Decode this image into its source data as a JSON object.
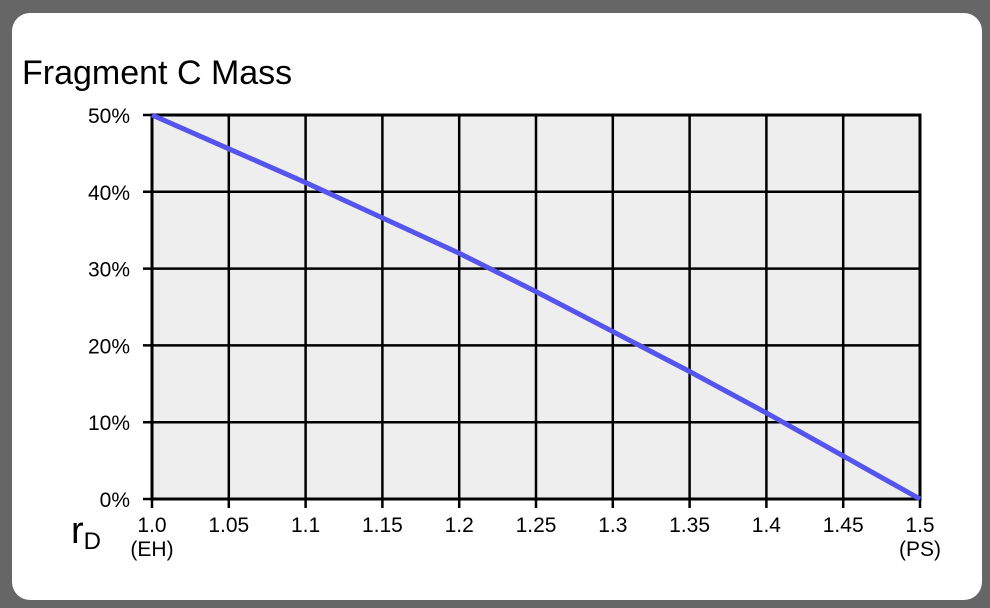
{
  "chart_data": {
    "type": "line",
    "title": "Fragment C Mass",
    "xlabel": "r",
    "xlabel_subscript": "D",
    "ylabel": "",
    "x": [
      1.0,
      1.05,
      1.1,
      1.15,
      1.2,
      1.25,
      1.3,
      1.35,
      1.4,
      1.45,
      1.5
    ],
    "x_tick_labels": [
      "1.0",
      "1.05",
      "1.1",
      "1.15",
      "1.2",
      "1.25",
      "1.3",
      "1.35",
      "1.4",
      "1.45",
      "1.5"
    ],
    "x_tick_sublabels": {
      "1.0": "(EH)",
      "1.5": "(PS)"
    },
    "y_tick_labels": [
      "0%",
      "10%",
      "20%",
      "30%",
      "40%",
      "50%"
    ],
    "xlim": [
      1.0,
      1.5
    ],
    "ylim": [
      0,
      50
    ],
    "grid": true,
    "series": [
      {
        "name": "Fragment C Mass",
        "color": "#5555ee",
        "values": [
          50,
          45.6,
          41.2,
          36.6,
          32.0,
          27.0,
          21.8,
          16.6,
          11.2,
          5.6,
          0
        ]
      }
    ]
  },
  "colors": {
    "background": "#666666",
    "card": "#ffffff",
    "plot_bg": "#eeeeee",
    "grid": "#000000",
    "line": "#5555ee"
  }
}
